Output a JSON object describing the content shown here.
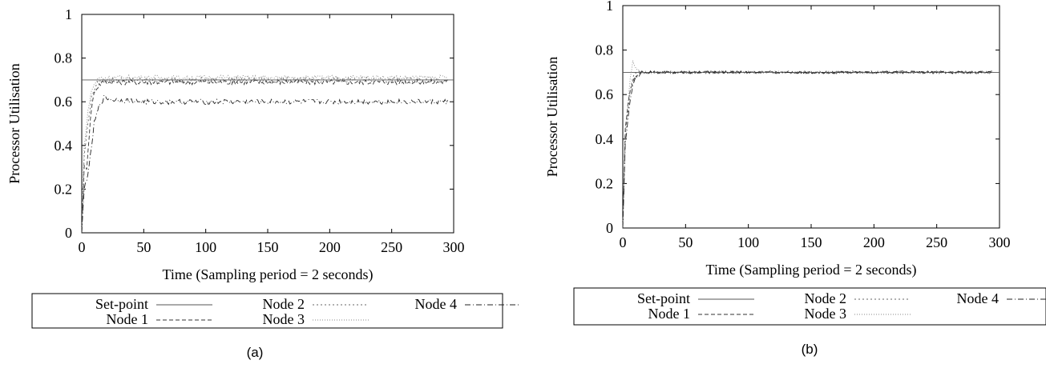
{
  "chart_data": [
    {
      "type": "line",
      "panel_label": "(a)",
      "xlabel": "Time (Sampling period = 2 seconds)",
      "ylabel": "Processor Utilisation",
      "xlim": [
        0,
        300
      ],
      "ylim": [
        0,
        1
      ],
      "x_ticks": [
        "0",
        "50",
        "100",
        "150",
        "200",
        "250",
        "300"
      ],
      "y_ticks": [
        "0",
        "0.2",
        "0.4",
        "0.6",
        "0.8",
        "1"
      ],
      "grid": false,
      "legend_position": "bottom",
      "series": [
        {
          "name": "Set-point",
          "x": [
            0,
            300
          ],
          "values": [
            0.7,
            0.7
          ]
        },
        {
          "name": "Node 1",
          "x": [
            0,
            2,
            4,
            6,
            8,
            10,
            14,
            18,
            25,
            50,
            100,
            150,
            200,
            250,
            295
          ],
          "values": [
            0.0,
            0.3,
            0.3,
            0.45,
            0.58,
            0.64,
            0.68,
            0.69,
            0.69,
            0.69,
            0.69,
            0.69,
            0.69,
            0.69,
            0.69
          ]
        },
        {
          "name": "Node 2",
          "x": [
            0,
            2,
            4,
            6,
            8,
            10,
            14,
            18,
            25,
            50,
            100,
            150,
            200,
            250,
            295
          ],
          "values": [
            0.0,
            0.35,
            0.45,
            0.55,
            0.62,
            0.66,
            0.69,
            0.7,
            0.7,
            0.7,
            0.7,
            0.7,
            0.7,
            0.7,
            0.7
          ]
        },
        {
          "name": "Node 3",
          "x": [
            0,
            2,
            4,
            6,
            8,
            10,
            14,
            18,
            25,
            50,
            100,
            150,
            200,
            250,
            295
          ],
          "values": [
            0.0,
            0.4,
            0.5,
            0.6,
            0.65,
            0.68,
            0.71,
            0.71,
            0.71,
            0.71,
            0.71,
            0.71,
            0.71,
            0.71,
            0.71
          ]
        },
        {
          "name": "Node 4",
          "x": [
            0,
            2,
            4,
            6,
            8,
            10,
            14,
            18,
            25,
            50,
            100,
            150,
            200,
            250,
            295
          ],
          "values": [
            0.0,
            0.2,
            0.25,
            0.3,
            0.4,
            0.5,
            0.58,
            0.62,
            0.61,
            0.6,
            0.6,
            0.6,
            0.6,
            0.6,
            0.6
          ]
        }
      ]
    },
    {
      "type": "line",
      "panel_label": "(b)",
      "xlabel": "Time (Sampling period = 2 seconds)",
      "ylabel": "Processor Utilisation",
      "xlim": [
        0,
        300
      ],
      "ylim": [
        0,
        1
      ],
      "x_ticks": [
        "0",
        "50",
        "100",
        "150",
        "200",
        "250",
        "300"
      ],
      "y_ticks": [
        "0",
        "0.2",
        "0.4",
        "0.6",
        "0.8",
        "1"
      ],
      "grid": false,
      "legend_position": "bottom",
      "series": [
        {
          "name": "Set-point",
          "x": [
            0,
            300
          ],
          "values": [
            0.7,
            0.7
          ]
        },
        {
          "name": "Node 1",
          "x": [
            0,
            2,
            4,
            6,
            8,
            10,
            14,
            20,
            50,
            100,
            150,
            200,
            250,
            295
          ],
          "values": [
            0.0,
            0.45,
            0.55,
            0.62,
            0.66,
            0.68,
            0.69,
            0.7,
            0.7,
            0.7,
            0.7,
            0.7,
            0.7,
            0.7
          ]
        },
        {
          "name": "Node 2",
          "x": [
            0,
            2,
            4,
            6,
            8,
            10,
            14,
            20,
            50,
            100,
            150,
            200,
            250,
            295
          ],
          "values": [
            0.0,
            0.42,
            0.52,
            0.62,
            0.68,
            0.7,
            0.7,
            0.7,
            0.7,
            0.7,
            0.7,
            0.7,
            0.7,
            0.7
          ]
        },
        {
          "name": "Node 3",
          "x": [
            0,
            2,
            4,
            6,
            8,
            10,
            14,
            20,
            50,
            100,
            150,
            200,
            250,
            295
          ],
          "values": [
            0.0,
            0.4,
            0.55,
            0.68,
            0.75,
            0.72,
            0.7,
            0.7,
            0.7,
            0.7,
            0.7,
            0.7,
            0.7,
            0.7
          ]
        },
        {
          "name": "Node 4",
          "x": [
            0,
            2,
            4,
            6,
            8,
            10,
            14,
            20,
            50,
            100,
            150,
            200,
            250,
            295
          ],
          "values": [
            0.0,
            0.38,
            0.48,
            0.58,
            0.64,
            0.68,
            0.7,
            0.7,
            0.7,
            0.7,
            0.7,
            0.7,
            0.7,
            0.7
          ]
        }
      ]
    }
  ],
  "style": {
    "axis_color": "#000000",
    "setpoint_color": "#555555",
    "node1_color": "#333333",
    "node2_color": "#666666",
    "node3_color": "#888888",
    "node4_color": "#222222"
  }
}
